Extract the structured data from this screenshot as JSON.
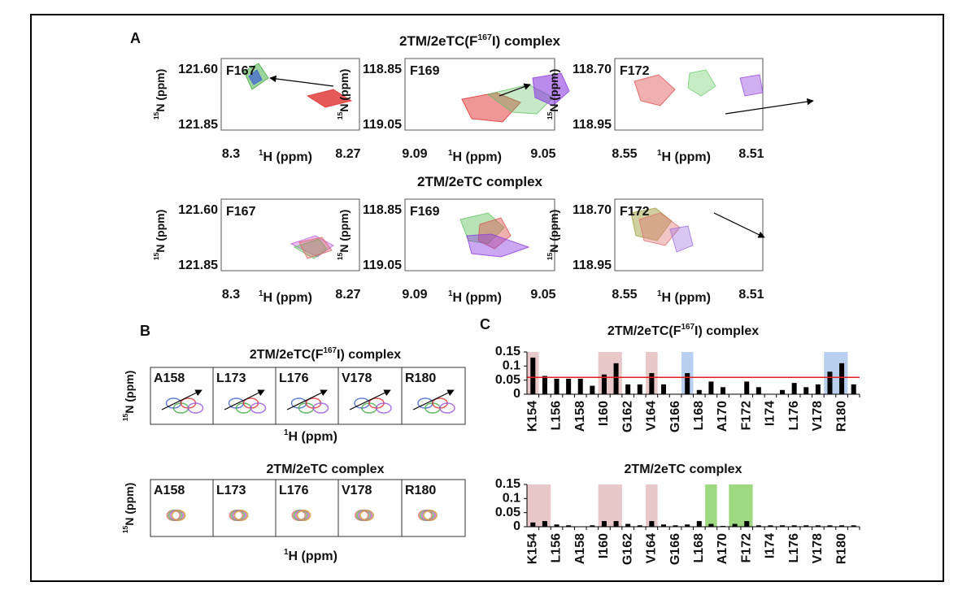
{
  "figure": {
    "axis_labels": {
      "n15": [
        "15",
        "N (ppm)"
      ],
      "h1": [
        "1",
        "H (ppm)"
      ]
    },
    "panel_a": {
      "label": "A",
      "rows": [
        {
          "title": [
            "2TM/2eTC(F",
            "167",
            "I) complex"
          ],
          "spectra": [
            {
              "residue": "F167",
              "y_ticks": [
                "121.60",
                "121.85"
              ],
              "x_ticks": [
                "8.3",
                "8.27"
              ]
            },
            {
              "residue": "F169",
              "y_ticks": [
                "118.85",
                "119.05"
              ],
              "x_ticks": [
                "9.09",
                "9.05"
              ]
            },
            {
              "residue": "F172",
              "y_ticks": [
                "118.70",
                "118.95"
              ],
              "x_ticks": [
                "8.55",
                "8.51"
              ]
            }
          ]
        },
        {
          "title": [
            "2TM/2eTC complex"
          ],
          "spectra": [
            {
              "residue": "F167",
              "y_ticks": [
                "121.60",
                "121.85"
              ],
              "x_ticks": [
                "8.3",
                "8.27"
              ]
            },
            {
              "residue": "F169",
              "y_ticks": [
                "118.85",
                "119.05"
              ],
              "x_ticks": [
                "9.09",
                "9.05"
              ]
            },
            {
              "residue": "F172",
              "y_ticks": [
                "118.70",
                "118.95"
              ],
              "x_ticks": [
                "8.55",
                "8.51"
              ]
            }
          ]
        }
      ]
    },
    "panel_b": {
      "label": "B",
      "rows": [
        {
          "title": [
            "2TM/2eTC(F",
            "167",
            "I) complex"
          ],
          "residues": [
            "A158",
            "L173",
            "L176",
            "V178",
            "R180"
          ]
        },
        {
          "title": [
            "2TM/2eTC complex"
          ],
          "residues": [
            "A158",
            "L173",
            "L176",
            "V178",
            "R180"
          ]
        }
      ]
    },
    "panel_c": {
      "label": "C"
    }
  },
  "chart_data": [
    {
      "type": "bar",
      "title": [
        "2TM/2eTC(F",
        "167",
        "I) complex"
      ],
      "categories": [
        "K154",
        null,
        "L156",
        null,
        "A158",
        null,
        "I160",
        null,
        "G162",
        null,
        "V164",
        null,
        "G166",
        null,
        "L168",
        null,
        "A170",
        null,
        "F172",
        null,
        "I174",
        null,
        "L176",
        null,
        "V178",
        null,
        "R180",
        null
      ],
      "values": [
        0.13,
        0.065,
        0.055,
        0.055,
        0.055,
        0.03,
        0.07,
        0.11,
        0.035,
        0.035,
        0.075,
        0.035,
        0,
        0.075,
        0.015,
        0.045,
        0.025,
        0,
        0.045,
        0.025,
        0,
        0.015,
        0.04,
        0.025,
        0.035,
        0.08,
        0.11,
        0.035
      ],
      "color": "#000000",
      "ylim": [
        0,
        0.15
      ],
      "yticks": [
        0,
        0.05,
        0.1,
        0.15
      ],
      "threshold": 0.06,
      "threshold_color": "#e02020"
    },
    {
      "type": "bar",
      "title": [
        "2TM/2eTC complex"
      ],
      "categories": [
        "K154",
        null,
        "L156",
        null,
        "A158",
        null,
        "I160",
        null,
        "G162",
        null,
        "V164",
        null,
        "G166",
        null,
        "L168",
        null,
        "A170",
        null,
        "F172",
        null,
        "I174",
        null,
        "L176",
        null,
        "V178",
        null,
        "R180",
        null
      ],
      "values": [
        0.015,
        0.02,
        0.008,
        0.005,
        0,
        0.005,
        0.02,
        0.02,
        0.01,
        0.005,
        0.02,
        0.008,
        0.005,
        0.008,
        0.02,
        0.01,
        0.003,
        0.01,
        0.02,
        0.005,
        0.005,
        0.005,
        0.005,
        0.005,
        0.005,
        0.005,
        0.005,
        0.005
      ],
      "color": "#000000",
      "ylim": [
        0,
        0.15
      ],
      "yticks": [
        0,
        0.05,
        0.1,
        0.15
      ]
    }
  ]
}
